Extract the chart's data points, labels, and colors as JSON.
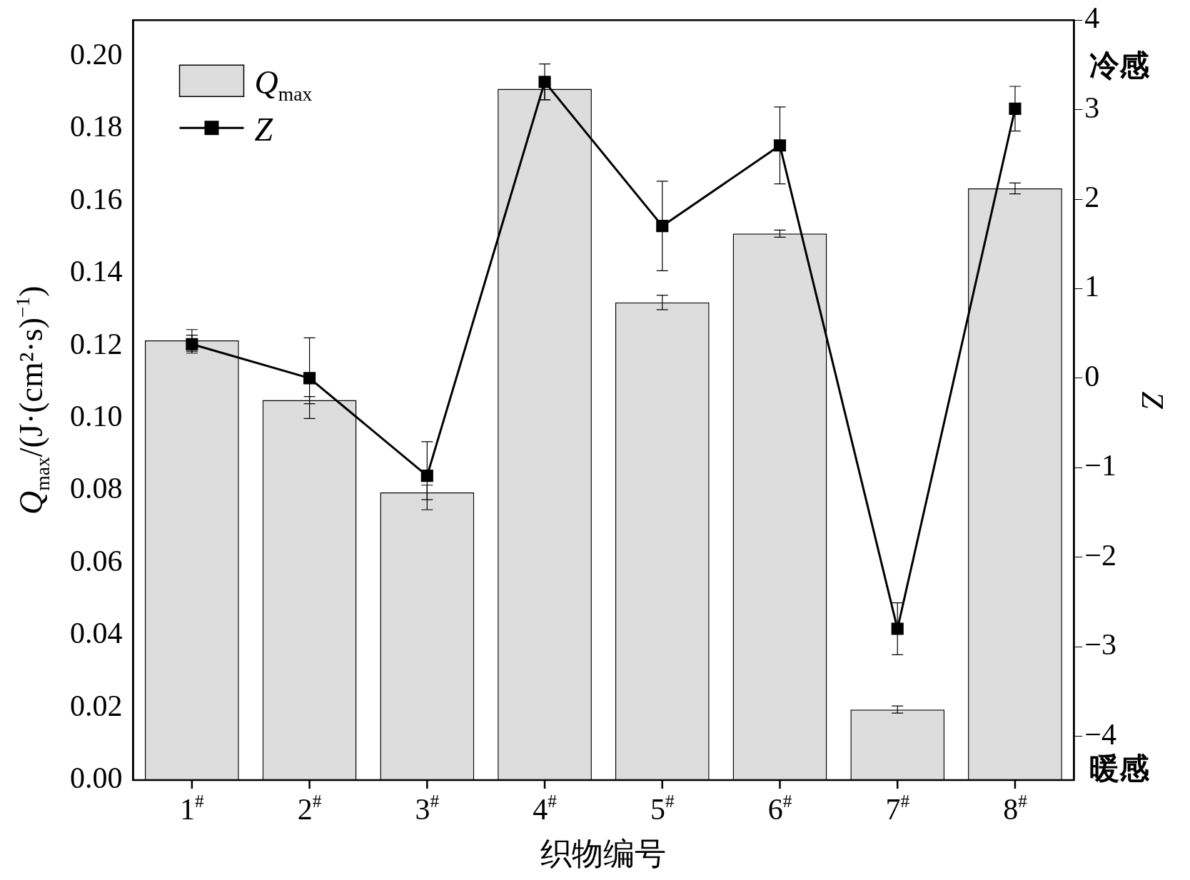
{
  "chart_data": {
    "type": "bar",
    "xlabel": "织物编号",
    "ylabel": "Q$_{max}$/(J·(cm²·s)$^{−1}$)",
    "y2label": "Z",
    "categories": [
      "1$^{#}$",
      "2$^{#}$",
      "3$^{#}$",
      "4$^{#}$",
      "5$^{#}$",
      "6$^{#}$",
      "7$^{#}$",
      "8$^{#}$"
    ],
    "series": [
      {
        "name": "Q$_{max}$",
        "color": "#dddddd",
        "values": [
          0.1215,
          0.105,
          0.0795,
          0.191,
          0.132,
          0.151,
          0.0195,
          0.1635
        ],
        "errors": [
          0.003,
          0.001,
          0.002,
          0.003,
          0.002,
          0.001,
          0.001,
          0.0015
        ]
      },
      {
        "name": "Z",
        "type": "line",
        "axis": "y2",
        "color": "#000000",
        "values": [
          0.38,
          0.0,
          -1.09,
          3.31,
          1.7,
          2.6,
          -2.8,
          3.01
        ],
        "errors": [
          0.1,
          0.45,
          0.38,
          0.2,
          0.5,
          0.43,
          0.29,
          0.25
        ]
      }
    ],
    "ylim": [
      0,
      0.21
    ],
    "yticks": [
      {
        "value": 0,
        "label": "0.00"
      },
      {
        "value": 0.02,
        "label": "0.02"
      },
      {
        "value": 0.04,
        "label": "0.04"
      },
      {
        "value": 0.06,
        "label": "0.06"
      },
      {
        "value": 0.08,
        "label": "0.08"
      },
      {
        "value": 0.1,
        "label": "0.10"
      },
      {
        "value": 0.12,
        "label": "0.12"
      },
      {
        "value": 0.14,
        "label": "0.14"
      },
      {
        "value": 0.16,
        "label": "0.16"
      },
      {
        "value": 0.18,
        "label": "0.18"
      },
      {
        "value": 0.2,
        "label": "0.20"
      }
    ],
    "y2lim": [
      -4.49,
      4
    ],
    "y2ticks": [
      {
        "value": -4,
        "label": "−4"
      },
      {
        "value": -3,
        "label": "−3"
      },
      {
        "value": -2,
        "label": "−2"
      },
      {
        "value": -1,
        "label": "−1"
      },
      0,
      1,
      2,
      3,
      4
    ],
    "annotations": [
      "冷感",
      "暖感"
    ],
    "legend": "top left",
    "marker": "square",
    "grid": false
  }
}
